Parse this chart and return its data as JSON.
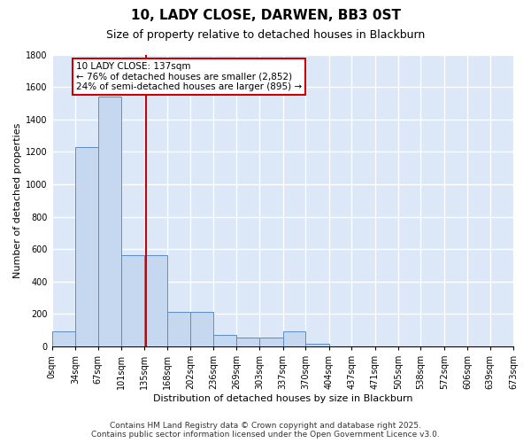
{
  "title1": "10, LADY CLOSE, DARWEN, BB3 0ST",
  "title2": "Size of property relative to detached houses in Blackburn",
  "xlabel": "Distribution of detached houses by size in Blackburn",
  "ylabel": "Number of detached properties",
  "bar_color": "#c5d8f0",
  "bar_edge_color": "#5b8cc8",
  "background_color": "#dce8f8",
  "grid_color": "#ffffff",
  "bins": [
    0,
    34,
    67,
    101,
    135,
    168,
    202,
    236,
    269,
    303,
    337,
    370,
    404,
    437,
    471,
    505,
    538,
    572,
    606,
    639,
    673
  ],
  "bin_labels": [
    "0sqm",
    "34sqm",
    "67sqm",
    "101sqm",
    "135sqm",
    "168sqm",
    "202sqm",
    "236sqm",
    "269sqm",
    "303sqm",
    "337sqm",
    "370sqm",
    "404sqm",
    "437sqm",
    "471sqm",
    "505sqm",
    "538sqm",
    "572sqm",
    "606sqm",
    "639sqm",
    "673sqm"
  ],
  "bar_heights": [
    90,
    1230,
    1540,
    565,
    565,
    210,
    210,
    70,
    55,
    55,
    90,
    15,
    0,
    0,
    0,
    0,
    0,
    0,
    0,
    0
  ],
  "property_size": 137,
  "vline_color": "#cc0000",
  "annotation_text": "10 LADY CLOSE: 137sqm\n← 76% of detached houses are smaller (2,852)\n24% of semi-detached houses are larger (895) →",
  "annotation_box_color": "#cc0000",
  "ylim": [
    0,
    1800
  ],
  "yticks": [
    0,
    200,
    400,
    600,
    800,
    1000,
    1200,
    1400,
    1600,
    1800
  ],
  "footer1": "Contains HM Land Registry data © Crown copyright and database right 2025.",
  "footer2": "Contains public sector information licensed under the Open Government Licence v3.0.",
  "title1_fontsize": 11,
  "title2_fontsize": 9,
  "ylabel_fontsize": 8,
  "xlabel_fontsize": 8,
  "tick_fontsize": 7,
  "footer_fontsize": 6.5
}
